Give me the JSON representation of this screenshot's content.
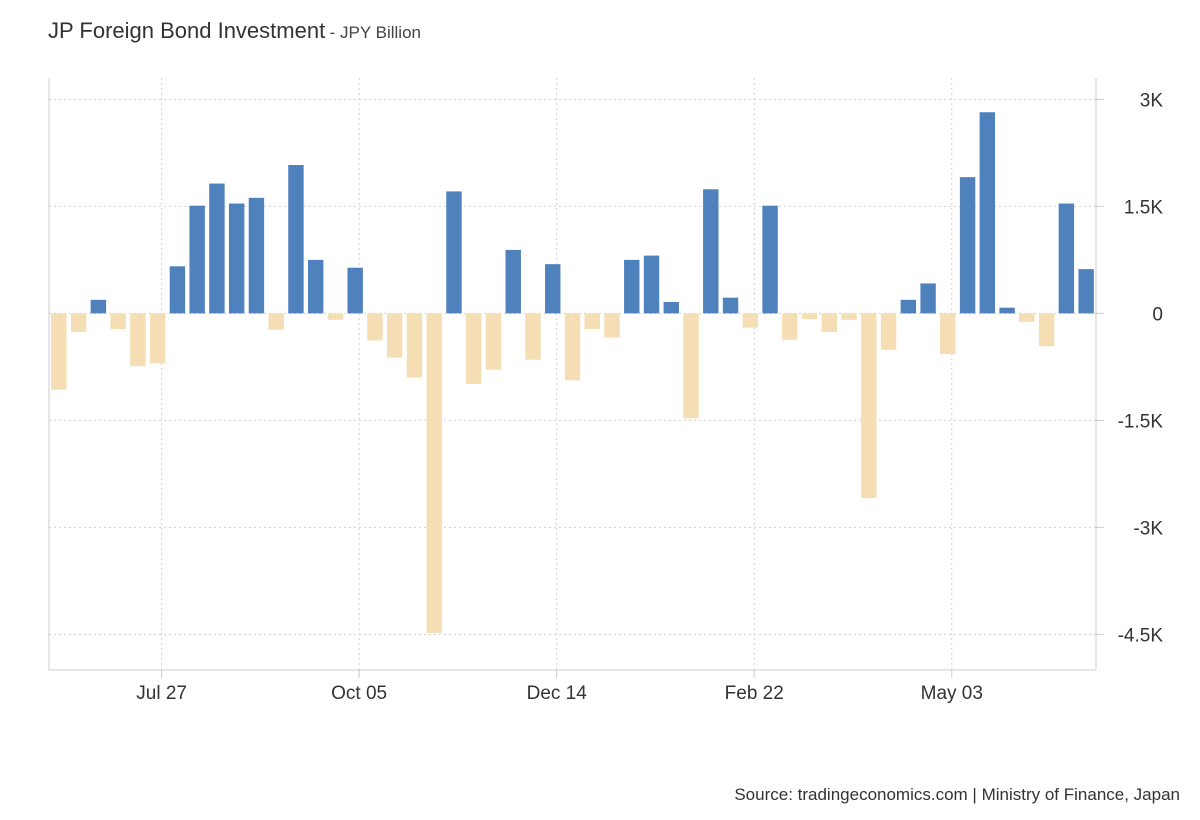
{
  "chart_data": {
    "type": "bar",
    "title": "JP Foreign Bond Investment",
    "subtitle": "JPY Billion",
    "source": "Source: tradingeconomics.com | Ministry of Finance, Japan",
    "ylim": [
      -5000,
      3300
    ],
    "y_ticks": [
      3000,
      1500,
      0,
      -1500,
      -3000,
      -4500
    ],
    "y_tick_labels": [
      "3K",
      "1.5K",
      "0",
      "-1.5K",
      "-3K",
      "-4.5K"
    ],
    "x_tick_labels": [
      "Jul 27",
      "Oct 05",
      "Dec 14",
      "Feb 22",
      "May 03"
    ],
    "x_tick_index": [
      5.2,
      15.2,
      25.2,
      35.2,
      45.2
    ],
    "grid": true,
    "colors": {
      "positive": "#4f81bd",
      "negative": "#f5deb3",
      "grid": "#d0d0d0",
      "axis": "#cccccc"
    },
    "values": [
      -1070,
      -260,
      190,
      -220,
      -740,
      -700,
      660,
      1510,
      1820,
      1540,
      1620,
      -230,
      2080,
      750,
      -90,
      640,
      -380,
      -620,
      -900,
      -4480,
      1710,
      -990,
      -790,
      890,
      -650,
      690,
      -940,
      -220,
      -340,
      750,
      810,
      160,
      -1470,
      1740,
      220,
      -200,
      1510,
      -370,
      -80,
      -260,
      -90,
      -2590,
      -510,
      190,
      420,
      -570,
      1910,
      2820,
      80,
      -120,
      -460,
      1540,
      620
    ]
  }
}
